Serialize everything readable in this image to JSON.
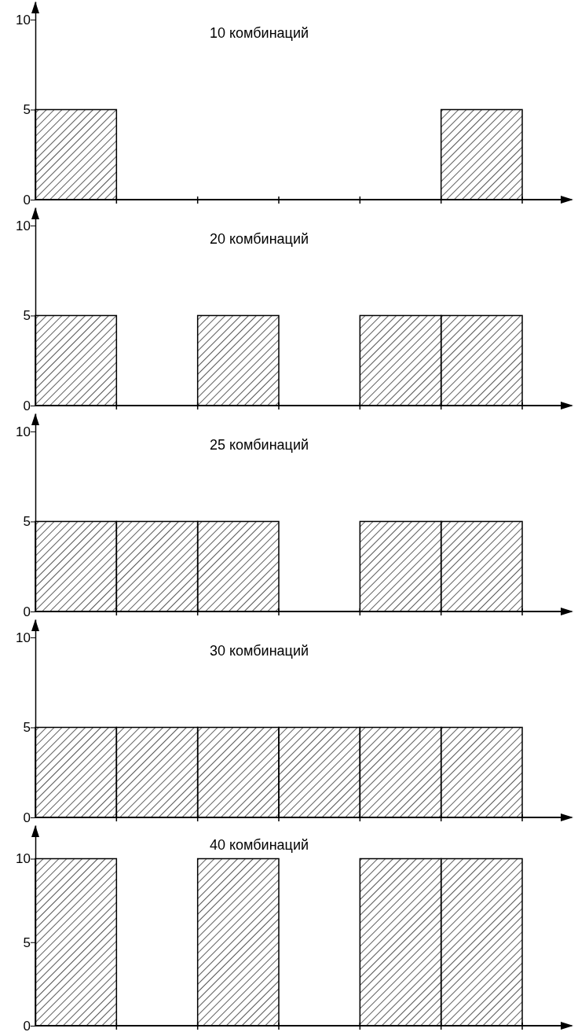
{
  "chart_data": [
    {
      "type": "bar",
      "title": "10 комбинаций",
      "categories": [
        null,
        null,
        null,
        null,
        null,
        null
      ],
      "values": [
        5,
        0,
        0,
        0,
        0,
        5
      ],
      "color": "#000000",
      "ylim": [
        0,
        11
      ],
      "yticks": [
        0,
        5,
        10
      ]
    },
    {
      "type": "bar",
      "title": "20 комбинаций",
      "categories": [
        null,
        null,
        null,
        null,
        null,
        null
      ],
      "values": [
        5,
        0,
        5,
        0,
        5,
        5
      ],
      "color": "#000000",
      "ylim": [
        0,
        11
      ],
      "yticks": [
        0,
        5,
        10
      ]
    },
    {
      "type": "bar",
      "title": "25 комбинаций",
      "categories": [
        null,
        null,
        null,
        null,
        null,
        null
      ],
      "values": [
        5,
        5,
        5,
        0,
        5,
        5
      ],
      "color": "#000000",
      "ylim": [
        0,
        11
      ],
      "yticks": [
        0,
        5,
        10
      ]
    },
    {
      "type": "bar",
      "title": "30 комбинаций",
      "categories": [
        null,
        null,
        null,
        null,
        null,
        null
      ],
      "values": [
        5,
        5,
        5,
        5,
        5,
        5
      ],
      "color": "#000000",
      "ylim": [
        0,
        11
      ],
      "yticks": [
        0,
        5,
        10
      ]
    },
    {
      "type": "bar",
      "title": "40 комбинаций",
      "categories": [
        null,
        null,
        null,
        null,
        null,
        null
      ],
      "values": [
        10,
        0,
        10,
        0,
        10,
        10
      ],
      "color": "#000000",
      "ylim": [
        0,
        12
      ],
      "yticks": [
        0,
        5,
        10
      ]
    }
  ]
}
